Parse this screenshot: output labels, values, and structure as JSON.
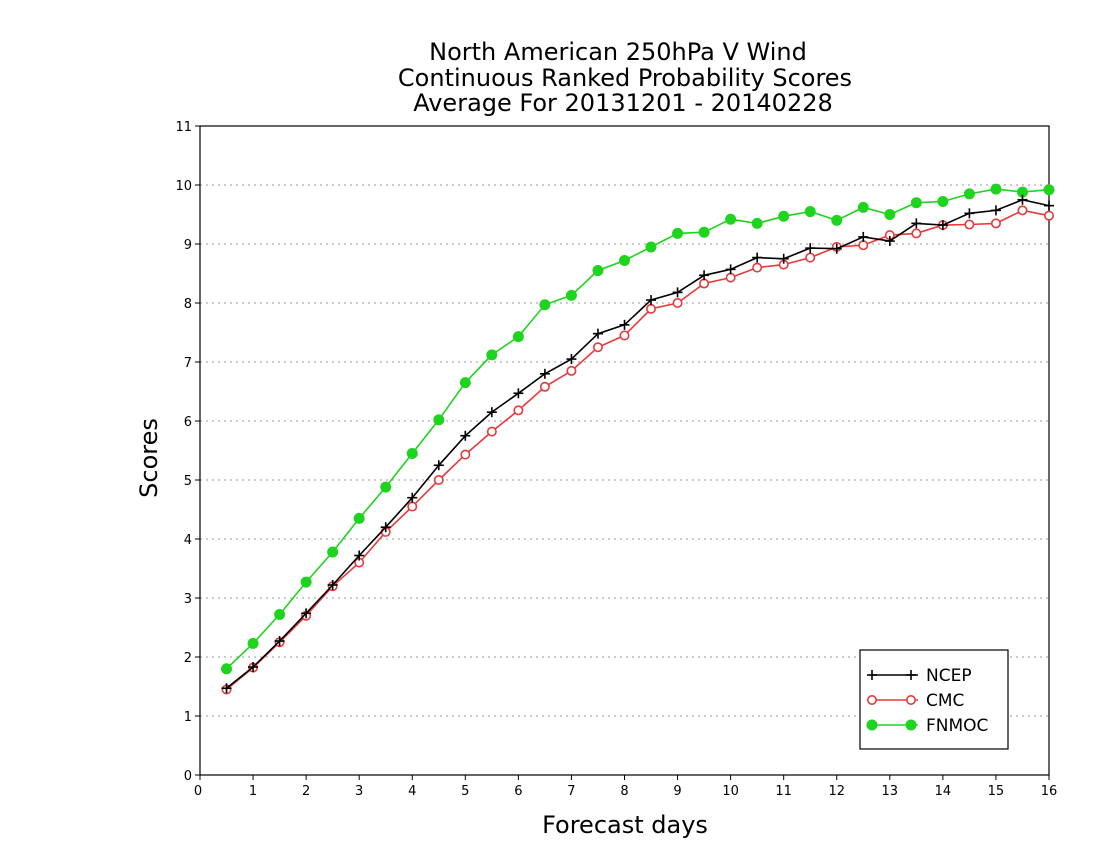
{
  "chart_data": {
    "type": "line",
    "title": [
      "North American 250hPa V Wind",
      "Continuous Ranked Probability Scores",
      "Average For 20131201 - 20140228"
    ],
    "xlabel": "Forecast days",
    "ylabel": "Scores",
    "xlim": [
      0,
      16
    ],
    "ylim": [
      0,
      11
    ],
    "xticks": [
      0,
      1,
      2,
      3,
      4,
      5,
      6,
      7,
      8,
      9,
      10,
      11,
      12,
      13,
      14,
      15,
      16
    ],
    "yticks": [
      0,
      1,
      2,
      3,
      4,
      5,
      6,
      7,
      8,
      9,
      10,
      11
    ],
    "grid": "horizontal dotted",
    "legend_position": "bottom-right",
    "x": [
      0.5,
      1,
      1.5,
      2,
      2.5,
      3,
      3.5,
      4,
      4.5,
      5,
      5.5,
      6,
      6.5,
      7,
      7.5,
      8,
      8.5,
      9,
      9.5,
      10,
      10.5,
      11,
      11.5,
      12,
      12.5,
      13,
      13.5,
      14,
      14.5,
      15,
      15.5,
      16
    ],
    "series": [
      {
        "name": "NCEP",
        "color": "#000000",
        "marker": "plus",
        "values": [
          1.47,
          1.83,
          2.27,
          2.74,
          3.22,
          3.72,
          4.2,
          4.7,
          5.25,
          5.75,
          6.15,
          6.47,
          6.8,
          7.05,
          7.48,
          7.63,
          8.05,
          8.18,
          8.47,
          8.57,
          8.77,
          8.75,
          8.93,
          8.92,
          9.12,
          9.05,
          9.35,
          9.32,
          9.52,
          9.57,
          9.75,
          9.65
        ]
      },
      {
        "name": "CMC",
        "color": "#e8393a",
        "marker": "open-circle",
        "values": [
          1.45,
          1.82,
          2.25,
          2.7,
          3.2,
          3.6,
          4.12,
          4.55,
          5.0,
          5.43,
          5.82,
          6.18,
          6.58,
          6.85,
          7.25,
          7.45,
          7.9,
          8.0,
          8.33,
          8.43,
          8.6,
          8.65,
          8.77,
          8.95,
          8.98,
          9.15,
          9.18,
          9.32,
          9.33,
          9.35,
          9.57,
          9.48
        ]
      },
      {
        "name": "FNMOC",
        "color": "#1ed41e",
        "marker": "filled-circle",
        "values": [
          1.8,
          2.23,
          2.72,
          3.27,
          3.78,
          4.35,
          4.88,
          5.45,
          6.02,
          6.65,
          7.12,
          7.43,
          7.97,
          8.13,
          8.55,
          8.72,
          8.95,
          9.18,
          9.2,
          9.42,
          9.35,
          9.47,
          9.55,
          9.4,
          9.62,
          9.5,
          9.7,
          9.72,
          9.85,
          9.93,
          9.88,
          9.92
        ]
      }
    ]
  }
}
